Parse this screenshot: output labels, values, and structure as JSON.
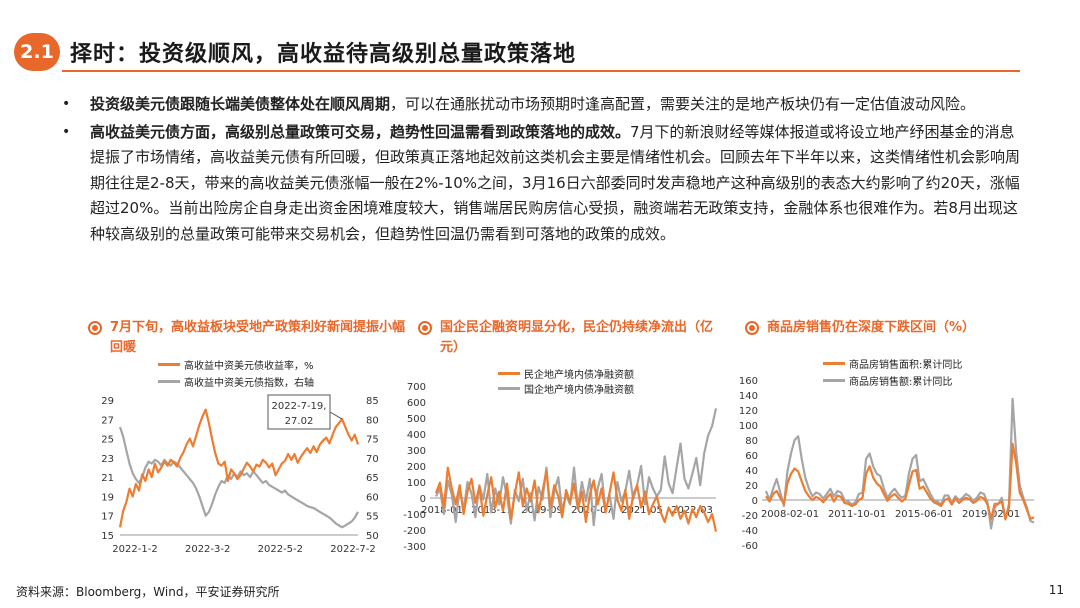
{
  "header": {
    "section_badge": "2.1",
    "title": "择时：投资级顺风，高收益待高级别总量政策落地"
  },
  "bullets": [
    {
      "bold": "投资级美元债跟随长端美债整体处在顺风周期",
      "text": "，可以在通胀扰动市场预期时逢高配置，需要关注的是地产板块仍有一定估值波动风险。"
    },
    {
      "bold": "高收益美元债方面，高级别总量政策可交易，趋势性回温需看到政策落地的成效。",
      "text": "7月下的新浪财经等媒体报道或将设立地产纾困基金的消息提振了市场情绪，高收益美元债有所回暖，但政策真正落地起效前这类机会主要是情绪性机会。回顾去年下半年以来，这类情绪性机会影响周期往往是2-8天，带来的高收益美元债涨幅一般在2%-10%之间，3月16日六部委同时发声稳地产这种高级别的表态大约影响了约20天，涨幅超过20%。当前出险房企自身走出资金困境难度较大，销售端居民购房信心受损，融资端若无政策支持，金融体系也很难作为。若8月出现这种较高级别的总量政策可能带来交易机会，但趋势性回温仍需看到可落地的政策的成效。"
    }
  ],
  "chart_titles": [
    "7月下旬，高收益板块受地产政策利好新闻提振小幅回暖",
    "国企民企融资明显分化，民企仍持续净流出（亿元）",
    "商品房销售仍在深度下跌区间（%）"
  ],
  "colors": {
    "accent": "#e8672a",
    "orange": "#ed7d31",
    "gray": "#a5a5a5"
  },
  "chart_data": [
    {
      "type": "line",
      "title": "",
      "series": [
        {
          "name": "高收益中资美元债收益率，%",
          "axis": "left",
          "color": "#ed7d31",
          "values": [
            15.8,
            17.5,
            18.4,
            19.8,
            19.0,
            20.3,
            19.6,
            21.3,
            20.6,
            21.8,
            21.0,
            22.4,
            21.5,
            22.0,
            22.6,
            22.2,
            22.8,
            22.5,
            22.1,
            23.0,
            23.6,
            24.4,
            25.0,
            24.2,
            25.3,
            26.4,
            27.3,
            28.0,
            26.6,
            25.0,
            23.5,
            22.4,
            22.2,
            22.6,
            20.6,
            21.8,
            21.4,
            20.8,
            21.2,
            21.9,
            22.5,
            22.1,
            21.6,
            22.3,
            22.1,
            22.8,
            22.5,
            22.0,
            22.4,
            21.2,
            21.8,
            22.4,
            22.7,
            23.4,
            22.8,
            23.4,
            22.5,
            23.1,
            23.6,
            24.0,
            23.5,
            24.2,
            23.6,
            24.4,
            24.8,
            25.1,
            24.5,
            25.4,
            26.2,
            26.6,
            27.02,
            26.2,
            25.4,
            24.8,
            25.4,
            24.4
          ]
        },
        {
          "name": "高收益中资美元债指数，右轴",
          "axis": "right",
          "color": "#a5a5a5",
          "values": [
            78.0,
            75.5,
            72.0,
            68.5,
            66.0,
            64.5,
            63.5,
            65.0,
            67.5,
            69.0,
            68.5,
            69.5,
            69.0,
            68.0,
            69.5,
            68.5,
            68.0,
            69.0,
            68.5,
            67.5,
            66.5,
            65.5,
            64.5,
            63.5,
            62.0,
            60.0,
            57.5,
            55.0,
            56.0,
            58.0,
            60.5,
            62.5,
            64.0,
            63.5,
            65.5,
            64.5,
            66.0,
            65.0,
            66.5,
            65.5,
            66.0,
            65.0,
            66.5,
            65.5,
            64.5,
            63.5,
            64.0,
            63.0,
            62.5,
            62.0,
            61.5,
            61.0,
            61.5,
            60.5,
            60.0,
            59.5,
            59.0,
            58.5,
            58.0,
            57.5,
            57.2,
            57.0,
            56.5,
            56.0,
            55.5,
            55.0,
            54.5,
            53.8,
            53.0,
            52.5,
            52.0,
            52.5,
            53.0,
            53.5,
            54.5,
            56.0
          ]
        }
      ],
      "x_ticks": [
        "2022-1-2",
        "2022-3-2",
        "2022-5-2",
        "2022-7-2"
      ],
      "y_left": {
        "min": 15,
        "max": 29,
        "ticks": [
          "15",
          "17",
          "19",
          "21",
          "23",
          "25",
          "27",
          "29"
        ]
      },
      "y_right": {
        "min": 50,
        "max": 85,
        "ticks": [
          "50",
          "55",
          "60",
          "65",
          "70",
          "75",
          "80",
          "85"
        ]
      },
      "annotation": {
        "text_line1": "2022-7-19,",
        "text_line2": "27.02",
        "point_index": 70
      },
      "legend": "top-left",
      "grid": false
    },
    {
      "type": "line",
      "title": "",
      "series": [
        {
          "name": "民企地产境内债净融资额",
          "color": "#ed7d31",
          "values": [
            30,
            95,
            -60,
            190,
            60,
            -40,
            80,
            -100,
            40,
            120,
            -30,
            70,
            -110,
            20,
            130,
            -60,
            40,
            -80,
            90,
            -130,
            30,
            160,
            -50,
            60,
            -20,
            110,
            -90,
            40,
            170,
            -60,
            80,
            10,
            -120,
            50,
            -30,
            90,
            -70,
            40,
            -150,
            20,
            110,
            -40,
            60,
            -90,
            30,
            160,
            -10,
            -80,
            50,
            -130,
            20,
            80,
            -60,
            40,
            -100,
            -40,
            10,
            -90,
            -150,
            -60,
            -110,
            -50,
            -130,
            -80,
            -160,
            -70,
            -120,
            -50,
            -90,
            -150,
            -100,
            -210
          ]
        },
        {
          "name": "国企地产境内债净融资额",
          "color": "#a5a5a5",
          "values": [
            10,
            60,
            -100,
            110,
            20,
            -150,
            60,
            -80,
            100,
            30,
            -120,
            80,
            -10,
            150,
            -90,
            60,
            -40,
            130,
            10,
            -160,
            50,
            -20,
            120,
            -80,
            30,
            -140,
            70,
            -10,
            190,
            -120,
            40,
            130,
            -80,
            20,
            -40,
            190,
            -60,
            100,
            -20,
            120,
            -170,
            60,
            150,
            -80,
            20,
            -130,
            100,
            -20,
            40,
            170,
            -10,
            80,
            200,
            -40,
            130,
            60,
            10,
            50,
            260,
            90,
            30,
            190,
            340,
            120,
            60,
            150,
            250,
            80,
            280,
            390,
            450,
            560
          ]
        }
      ],
      "x_ticks": [
        "2018-01",
        "2018-11",
        "2019-09",
        "2020-07",
        "2021-05",
        "2022-03"
      ],
      "y": {
        "min": -300,
        "max": 700,
        "ticks": [
          "-300",
          "-200",
          "-100",
          "0",
          "100",
          "200",
          "300",
          "400",
          "500",
          "600",
          "700"
        ]
      },
      "legend": "top",
      "grid": false
    },
    {
      "type": "line",
      "title": "",
      "series": [
        {
          "name": "商品房销售面积:累计同比",
          "color": "#ed7d31",
          "values": [
            5,
            -2,
            8,
            12,
            3,
            -5,
            22,
            35,
            42,
            38,
            25,
            12,
            5,
            0,
            4,
            2,
            -3,
            3,
            8,
            -2,
            6,
            4,
            -4,
            -5,
            -8,
            -6,
            0,
            3,
            35,
            45,
            30,
            22,
            18,
            8,
            -1,
            5,
            8,
            3,
            -2,
            2,
            20,
            38,
            40,
            15,
            18,
            10,
            2,
            -3,
            -5,
            -8,
            0,
            2,
            -6,
            2,
            -4,
            0,
            3,
            1,
            -4,
            -1,
            4,
            2,
            -6,
            -25,
            -5,
            -5,
            -2,
            -25,
            -10,
            75,
            50,
            10,
            0,
            -13,
            -25,
            -23
          ]
        },
        {
          "name": "商品房销售额:累计同比",
          "color": "#a5a5a5",
          "values": [
            12,
            0,
            15,
            28,
            10,
            -8,
            38,
            62,
            80,
            85,
            55,
            30,
            15,
            5,
            10,
            8,
            2,
            8,
            15,
            5,
            12,
            10,
            0,
            -2,
            -6,
            -3,
            8,
            10,
            55,
            62,
            45,
            35,
            32,
            15,
            3,
            10,
            15,
            8,
            3,
            6,
            35,
            55,
            60,
            25,
            28,
            18,
            8,
            0,
            -2,
            -6,
            6,
            6,
            -3,
            5,
            0,
            3,
            8,
            5,
            -1,
            3,
            10,
            8,
            -3,
            -38,
            -10,
            -5,
            3,
            -26,
            -5,
            135,
            65,
            20,
            3,
            -10,
            -28,
            -30
          ]
        }
      ],
      "x_ticks": [
        "2008-02-01",
        "2011-10-01",
        "2015-06-01",
        "2019-02-01"
      ],
      "y": {
        "min": -60,
        "max": 160,
        "ticks": [
          "-60",
          "-40",
          "-20",
          "0",
          "20",
          "40",
          "60",
          "80",
          "100",
          "120",
          "140",
          "160"
        ]
      },
      "legend": "top",
      "grid": false
    }
  ],
  "footer": {
    "source": "资料来源：Bloomberg，Wind，平安证券研究所",
    "page": "11"
  }
}
